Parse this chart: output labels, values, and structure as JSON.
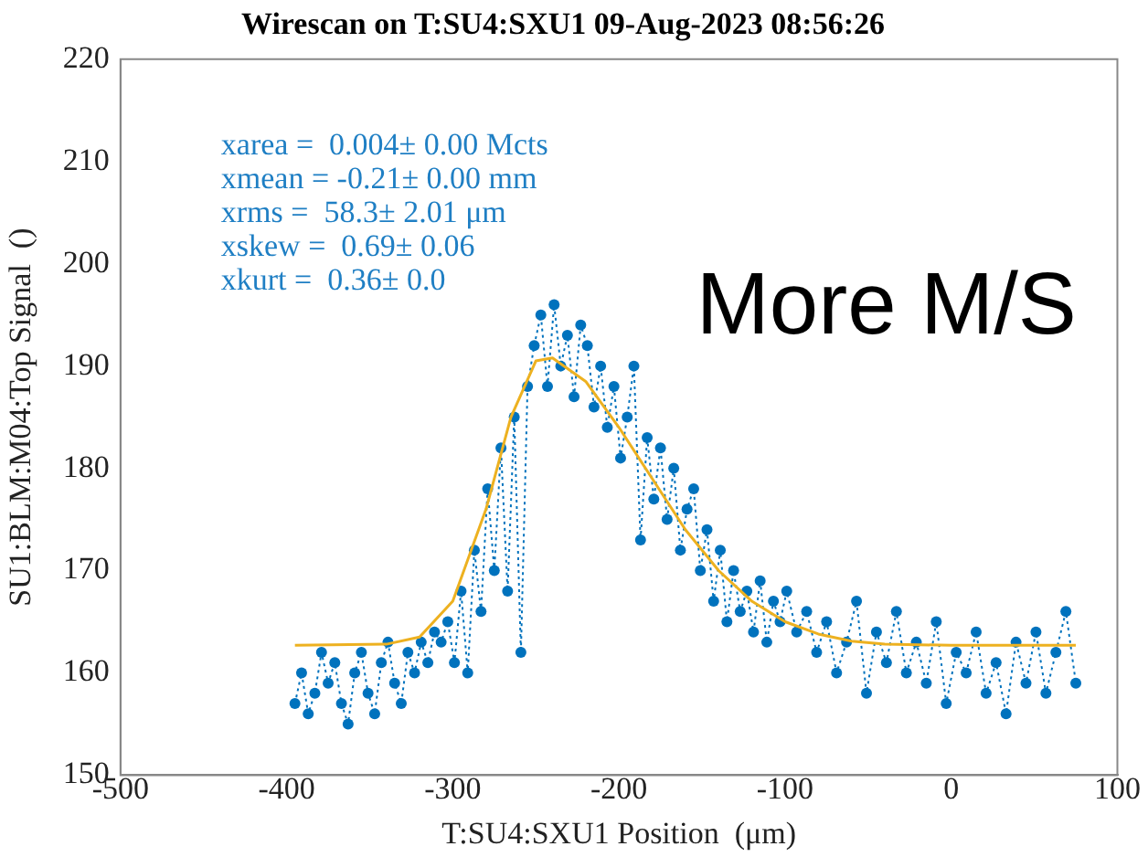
{
  "chart_data": {
    "type": "line",
    "title": "Wirescan on T:SU4:SXU1 09-Aug-2023 08:56:26",
    "xlabel": "T:SU4:SXU1 Position  (μm)",
    "ylabel": "SU1:BLM:M04:Top Signal  ()",
    "xlim": [
      -500,
      100
    ],
    "xticks": [
      -500,
      -400,
      -300,
      -200,
      -100,
      0,
      100
    ],
    "ylim": [
      150,
      220
    ],
    "yticks": [
      150,
      160,
      170,
      180,
      190,
      200,
      210,
      220
    ],
    "grid": false,
    "annotations": [
      "xarea =  0.004± 0.00 Mcts",
      "xmean = -0.21± 0.00 mm",
      "xrms =  58.3± 2.01 μm",
      "xskew =  0.69± 0.06",
      "xkurt =  0.36± 0.0",
      "More M/S"
    ],
    "series": [
      {
        "color": "#0072bd",
        "marker": "circle",
        "line_style": "dotted",
        "x": [
          -395,
          -391,
          -387,
          -383,
          -379,
          -375,
          -371,
          -367,
          -363,
          -359,
          -355,
          -351,
          -347,
          -343,
          -339,
          -335,
          -331,
          -327,
          -323,
          -319,
          -315,
          -311,
          -307,
          -303,
          -299,
          -295,
          -291,
          -287,
          -283,
          -279,
          -275,
          -271,
          -267,
          -263,
          -259,
          -255,
          -251,
          -247,
          -243,
          -239,
          -235,
          -231,
          -227,
          -223,
          -219,
          -215,
          -211,
          -207,
          -203,
          -199,
          -195,
          -191,
          -187,
          -183,
          -179,
          -175,
          -171,
          -167,
          -163,
          -159,
          -155,
          -151,
          -147,
          -143,
          -139,
          -135,
          -131,
          -127,
          -123,
          -119,
          -115,
          -111,
          -107,
          -103,
          -99,
          -93,
          -87,
          -81,
          -75,
          -69,
          -63,
          -57,
          -51,
          -45,
          -39,
          -33,
          -27,
          -21,
          -15,
          -9,
          -3,
          3,
          9,
          15,
          21,
          27,
          33,
          39,
          45,
          51,
          57,
          63,
          69,
          75
        ],
        "values": [
          157,
          160,
          156,
          158,
          162,
          159,
          161,
          157,
          155,
          160,
          162,
          158,
          156,
          161,
          163,
          159,
          157,
          162,
          160,
          163,
          161,
          164,
          163,
          165,
          161,
          168,
          160,
          172,
          166,
          178,
          170,
          182,
          168,
          185,
          162,
          188,
          192,
          195,
          188,
          196,
          190,
          193,
          187,
          194,
          192,
          186,
          190,
          184,
          188,
          181,
          185,
          190,
          173,
          183,
          177,
          182,
          175,
          180,
          172,
          176,
          178,
          170,
          174,
          167,
          172,
          165,
          170,
          166,
          168,
          164,
          169,
          163,
          167,
          165,
          168,
          164,
          166,
          162,
          165,
          160,
          163,
          167,
          158,
          164,
          161,
          166,
          160,
          163,
          159,
          165,
          157,
          162,
          160,
          164,
          158,
          161,
          156,
          163,
          159,
          164,
          158,
          162,
          166,
          159
        ]
      },
      {
        "type": "line",
        "color": "#edb120",
        "marker": "none",
        "line_style": "solid",
        "x": [
          -395,
          -340,
          -320,
          -300,
          -280,
          -265,
          -250,
          -240,
          -220,
          -200,
          -180,
          -160,
          -140,
          -120,
          -100,
          -80,
          -60,
          -40,
          0,
          75
        ],
        "values": [
          162.7,
          162.8,
          163.5,
          167,
          176,
          185,
          190.5,
          190.8,
          188.5,
          184,
          179,
          174,
          170,
          167,
          165,
          163.8,
          163.1,
          162.8,
          162.7,
          162.7
        ]
      }
    ]
  }
}
